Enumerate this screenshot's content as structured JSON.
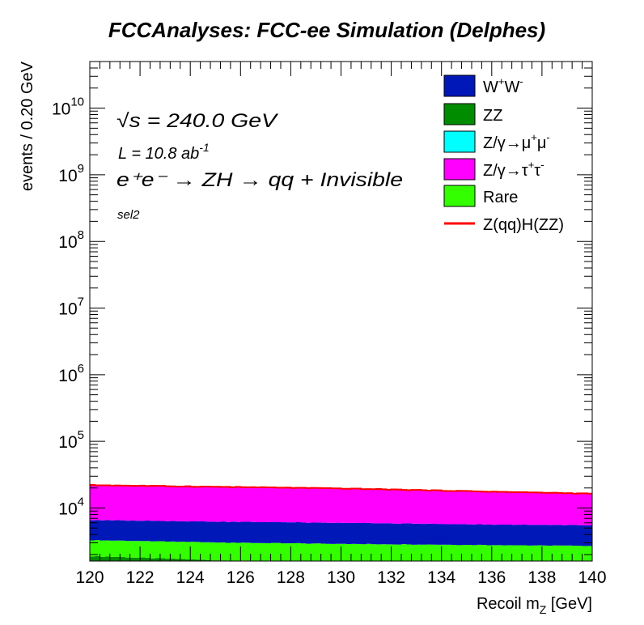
{
  "chart_data": {
    "type": "area",
    "title": "FCCAnalyses: FCC-ee Simulation (Delphes)",
    "xlabel": "Recoil m",
    "xlabel_sub": "Z",
    "xlabel_unit": "[GeV]",
    "ylabel": "events / 0.20 GeV",
    "xlim": [
      120,
      140
    ],
    "ylim": [
      1600,
      50000000000
    ],
    "yscale": "log",
    "grid": false,
    "stacked": true,
    "legend_position": "top-right",
    "x_ticks": [
      "120",
      "122",
      "124",
      "126",
      "128",
      "130",
      "132",
      "134",
      "136",
      "138",
      "140"
    ],
    "y_ticks": [
      {
        "base": "10",
        "exp": "4",
        "value": 10000
      },
      {
        "base": "10",
        "exp": "5",
        "value": 100000
      },
      {
        "base": "10",
        "exp": "6",
        "value": 1000000
      },
      {
        "base": "10",
        "exp": "7",
        "value": 10000000
      },
      {
        "base": "10",
        "exp": "8",
        "value": 100000000
      },
      {
        "base": "10",
        "exp": "9",
        "value": 1000000000
      },
      {
        "base": "10",
        "exp": "10",
        "value": 10000000000
      }
    ],
    "annotations": {
      "sqrt_s": "√s = 240.0 GeV",
      "lumi": "L = 10.8 ab",
      "lumi_exp": "-1",
      "process": "e⁺e⁻ → ZH → qq + Invisible",
      "selection": "sel2"
    },
    "series": [
      {
        "name": "ZZ",
        "label_parts": [
          [
            "ZZ",
            ""
          ]
        ],
        "color": "#008c00",
        "stack_order": 0,
        "edges": [
          120,
          125,
          130,
          135,
          140
        ],
        "values": [
          1900,
          1650,
          1500,
          1400,
          1300
        ]
      },
      {
        "name": "Rare",
        "label_parts": [
          [
            "Rare",
            ""
          ]
        ],
        "color": "#33ff00",
        "stack_order": 1,
        "edges": [
          120,
          125,
          130,
          135,
          140
        ],
        "values": [
          1400,
          1400,
          1400,
          1400,
          1400
        ]
      },
      {
        "name": "Z/γ→μ⁺μ⁻",
        "label_parts": [
          [
            "Z/γ→μ",
            ""
          ],
          [
            "+",
            "sup"
          ],
          [
            "μ",
            ""
          ],
          [
            "-",
            "sup"
          ]
        ],
        "color": "#00ffff",
        "stack_order": 2,
        "edges": [
          120,
          125,
          130,
          135,
          140
        ],
        "values": [
          0,
          0,
          0,
          0,
          0
        ]
      },
      {
        "name": "W⁺W⁻",
        "label_parts": [
          [
            "W",
            ""
          ],
          [
            "+",
            "sup"
          ],
          [
            "W",
            ""
          ],
          [
            "-",
            "sup"
          ]
        ],
        "color": "#0018b8",
        "stack_order": 3,
        "edges": [
          120,
          125,
          130,
          135,
          140
        ],
        "values": [
          3300,
          3200,
          3100,
          2900,
          2800
        ]
      },
      {
        "name": "Z/γ→τ⁺τ⁻",
        "label_parts": [
          [
            "Z/γ→τ",
            ""
          ],
          [
            "+",
            "sup"
          ],
          [
            "τ",
            ""
          ],
          [
            "-",
            "sup"
          ]
        ],
        "color": "#ff00ff",
        "stack_order": 4,
        "edges": [
          120,
          125,
          130,
          135,
          140
        ],
        "values": [
          15400,
          14500,
          13600,
          12200,
          10900
        ]
      }
    ],
    "signal": {
      "name": "Z(qq)H(ZZ)",
      "color": "#ff0000",
      "edges": [
        120,
        125,
        130,
        135,
        140
      ],
      "values": [
        22000,
        20800,
        19600,
        17900,
        16400
      ]
    },
    "legend": [
      {
        "name": "W⁺W⁻",
        "kind": "fill",
        "series": 3
      },
      {
        "name": "ZZ",
        "kind": "fill",
        "series": 0
      },
      {
        "name": "Z/γ→μ⁺μ⁻",
        "kind": "fill",
        "series": 2
      },
      {
        "name": "Z/γ→τ⁺τ⁻",
        "kind": "fill",
        "series": 4
      },
      {
        "name": "Rare",
        "kind": "fill",
        "series": 1
      },
      {
        "name": "Z(qq)H(ZZ)",
        "kind": "line"
      }
    ]
  }
}
